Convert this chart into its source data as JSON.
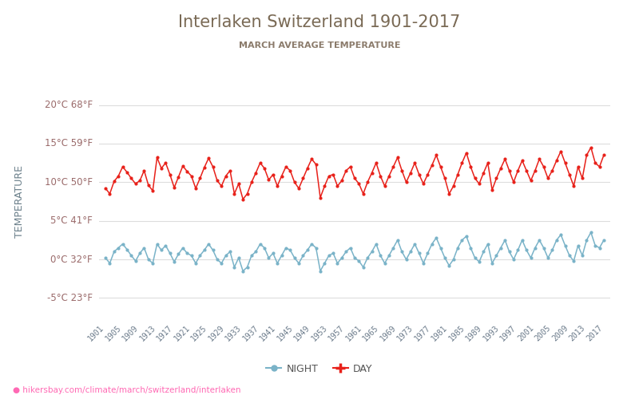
{
  "title": "Interlaken Switzerland 1901-2017",
  "subtitle": "MARCH AVERAGE TEMPERATURE",
  "ylabel": "TEMPERATURE",
  "url_text": "hikersbay.com/climate/march/switzerland/interlaken",
  "year_start": 1901,
  "year_end": 2017,
  "yticks_c": [
    -5,
    0,
    5,
    10,
    15,
    20
  ],
  "yticks_f": [
    23,
    32,
    41,
    50,
    59,
    68
  ],
  "ylim": [
    -8.0,
    23.0
  ],
  "day_color": "#e8211a",
  "night_color": "#7ab3c8",
  "grid_color": "#dddddd",
  "bg_color": "#ffffff",
  "title_color": "#7a6a55",
  "subtitle_color": "#8b7b6b",
  "ylabel_color": "#6a7f8a",
  "tick_color": "#9a6a6a",
  "url_color": "#ff69b4",
  "legend_day_label": "DAY",
  "legend_night_label": "NIGHT",
  "day_data": [
    9.2,
    8.5,
    10.1,
    10.8,
    12.0,
    11.3,
    10.5,
    9.8,
    10.2,
    11.5,
    9.6,
    8.9,
    13.2,
    11.8,
    12.5,
    11.0,
    9.3,
    10.7,
    12.1,
    11.4,
    10.8,
    9.2,
    10.5,
    11.9,
    13.1,
    12.0,
    10.2,
    9.5,
    10.8,
    11.5,
    8.5,
    9.8,
    7.8,
    8.5,
    10.0,
    11.2,
    12.5,
    11.8,
    10.3,
    11.0,
    9.5,
    10.8,
    12.0,
    11.5,
    10.0,
    9.2,
    10.5,
    11.8,
    13.0,
    12.3,
    8.0,
    9.5,
    10.8,
    11.0,
    9.5,
    10.2,
    11.5,
    12.0,
    10.5,
    9.8,
    8.5,
    10.0,
    11.2,
    12.5,
    10.8,
    9.5,
    10.8,
    12.0,
    13.2,
    11.5,
    10.0,
    11.2,
    12.5,
    11.0,
    9.8,
    11.0,
    12.2,
    13.5,
    12.0,
    10.5,
    8.5,
    9.5,
    11.0,
    12.5,
    13.8,
    12.0,
    10.5,
    9.8,
    11.2,
    12.5,
    9.0,
    10.5,
    11.8,
    13.0,
    11.5,
    10.0,
    11.5,
    12.8,
    11.5,
    10.2,
    11.5,
    13.0,
    12.0,
    10.5,
    11.5,
    12.8,
    14.0,
    12.5,
    11.0,
    9.5,
    12.0,
    10.5,
    13.5,
    14.5,
    12.5,
    12.0,
    13.5
  ],
  "night_data": [
    0.2,
    -0.5,
    1.0,
    1.5,
    2.0,
    1.3,
    0.5,
    -0.2,
    0.8,
    1.5,
    0.0,
    -0.5,
    2.0,
    1.2,
    1.8,
    0.8,
    -0.3,
    0.7,
    1.5,
    0.8,
    0.5,
    -0.5,
    0.5,
    1.2,
    2.0,
    1.2,
    0.0,
    -0.5,
    0.5,
    1.0,
    -1.0,
    0.2,
    -1.5,
    -1.0,
    0.5,
    1.0,
    2.0,
    1.5,
    0.2,
    0.8,
    -0.5,
    0.5,
    1.5,
    1.2,
    0.2,
    -0.5,
    0.5,
    1.2,
    2.0,
    1.5,
    -1.5,
    -0.5,
    0.5,
    0.8,
    -0.5,
    0.2,
    1.0,
    1.5,
    0.2,
    -0.2,
    -1.0,
    0.2,
    1.0,
    2.0,
    0.5,
    -0.5,
    0.5,
    1.5,
    2.5,
    1.0,
    0.0,
    1.0,
    2.0,
    0.8,
    -0.5,
    0.8,
    2.0,
    2.8,
    1.5,
    0.2,
    -0.8,
    0.0,
    1.5,
    2.5,
    3.0,
    1.5,
    0.2,
    -0.3,
    1.0,
    2.0,
    -0.5,
    0.5,
    1.5,
    2.5,
    1.0,
    0.0,
    1.2,
    2.5,
    1.2,
    0.2,
    1.5,
    2.5,
    1.5,
    0.2,
    1.2,
    2.5,
    3.2,
    1.8,
    0.5,
    -0.2,
    1.8,
    0.5,
    2.5,
    3.5,
    1.8,
    1.5,
    2.5
  ]
}
